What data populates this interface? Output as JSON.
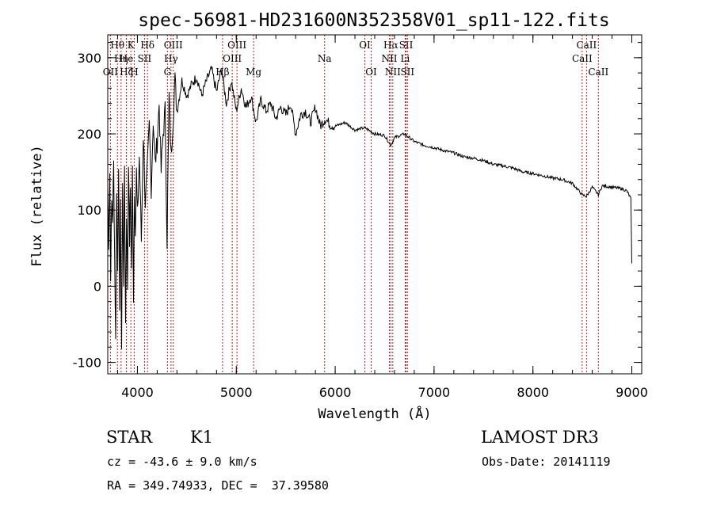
{
  "chart_data": {
    "type": "line",
    "title": "spec-56981-HD231600N352358V01_sp11-122.fits",
    "xlabel": "Wavelength (Å)",
    "ylabel": "Flux (relative)",
    "xlim": [
      3700,
      9100
    ],
    "ylim": [
      -115,
      330
    ],
    "xticks": [
      4000,
      5000,
      6000,
      7000,
      8000,
      9000
    ],
    "yticks": [
      -100,
      0,
      100,
      200,
      300
    ],
    "series": [
      {
        "name": "flux",
        "x": [
          3700,
          3710,
          3720,
          3730,
          3740,
          3750,
          3760,
          3770,
          3780,
          3790,
          3800,
          3810,
          3820,
          3830,
          3840,
          3850,
          3860,
          3870,
          3880,
          3890,
          3900,
          3910,
          3920,
          3930,
          3940,
          3950,
          3960,
          3970,
          3980,
          3990,
          4000,
          4020,
          4040,
          4060,
          4080,
          4100,
          4120,
          4140,
          4160,
          4180,
          4200,
          4220,
          4240,
          4260,
          4280,
          4300,
          4320,
          4340,
          4360,
          4380,
          4400,
          4450,
          4500,
          4550,
          4600,
          4650,
          4700,
          4750,
          4800,
          4850,
          4900,
          4950,
          5000,
          5050,
          5100,
          5150,
          5200,
          5250,
          5300,
          5350,
          5400,
          5450,
          5500,
          5550,
          5600,
          5650,
          5700,
          5750,
          5800,
          5850,
          5900,
          5950,
          6000,
          6100,
          6200,
          6300,
          6400,
          6500,
          6563,
          6600,
          6700,
          6800,
          6900,
          7000,
          7100,
          7200,
          7300,
          7400,
          7500,
          7600,
          7700,
          7800,
          7900,
          8000,
          8100,
          8200,
          8300,
          8400,
          8498,
          8542,
          8600,
          8662,
          8700,
          8800,
          8900,
          8950,
          8990,
          9000
        ],
        "values": [
          130,
          60,
          150,
          20,
          110,
          90,
          160,
          40,
          -75,
          120,
          30,
          140,
          -20,
          100,
          -80,
          130,
          10,
          160,
          -50,
          100,
          0,
          170,
          60,
          130,
          20,
          150,
          -10,
          120,
          80,
          150,
          90,
          170,
          60,
          200,
          110,
          150,
          210,
          130,
          220,
          160,
          190,
          240,
          150,
          200,
          230,
          60,
          250,
          170,
          220,
          270,
          230,
          270,
          250,
          265,
          275,
          250,
          270,
          285,
          255,
          285,
          240,
          270,
          230,
          260,
          235,
          250,
          215,
          245,
          230,
          240,
          220,
          235,
          225,
          240,
          200,
          225,
          230,
          215,
          235,
          210,
          220,
          212,
          210,
          215,
          205,
          208,
          200,
          198,
          185,
          195,
          200,
          190,
          185,
          182,
          178,
          175,
          170,
          168,
          165,
          160,
          158,
          155,
          150,
          148,
          145,
          142,
          140,
          135,
          120,
          118,
          130,
          120,
          132,
          130,
          128,
          125,
          115,
          30
        ]
      }
    ],
    "spectral_lines": [
      {
        "label": "Hθ",
        "x": 3798,
        "row": 1
      },
      {
        "label": "OII",
        "x": 3727,
        "row": 3
      },
      {
        "label": "Hη",
        "x": 3835,
        "row": 2
      },
      {
        "label": "He",
        "x": 3889,
        "row": 2
      },
      {
        "label": "Hζ",
        "x": 3889,
        "row": 3
      },
      {
        "label": "K",
        "x": 3934,
        "row": 1
      },
      {
        "label": "H",
        "x": 3968,
        "row": 3
      },
      {
        "label": "SII",
        "x": 4072,
        "row": 2
      },
      {
        "label": "Hδ",
        "x": 4102,
        "row": 1
      },
      {
        "label": "OIII",
        "x": 4363,
        "row": 1
      },
      {
        "label": "Hγ",
        "x": 4340,
        "row": 2
      },
      {
        "label": "G",
        "x": 4304,
        "row": 3
      },
      {
        "label": "Hβ",
        "x": 4861,
        "row": 3
      },
      {
        "label": "OIII",
        "x": 5007,
        "row": 1
      },
      {
        "label": "OIII",
        "x": 4959,
        "row": 2
      },
      {
        "label": "Mg",
        "x": 5175,
        "row": 3
      },
      {
        "label": "Na",
        "x": 5893,
        "row": 2
      },
      {
        "label": "OI",
        "x": 6300,
        "row": 1
      },
      {
        "label": "OI",
        "x": 6364,
        "row": 3
      },
      {
        "label": "Hα",
        "x": 6563,
        "row": 1
      },
      {
        "label": "NII",
        "x": 6548,
        "row": 2
      },
      {
        "label": "SII",
        "x": 6717,
        "row": 1
      },
      {
        "label": "NII",
        "x": 6583,
        "row": 3
      },
      {
        "label": "Li",
        "x": 6708,
        "row": 2
      },
      {
        "label": "SII",
        "x": 6731,
        "row": 3
      },
      {
        "label": "CaII",
        "x": 8542,
        "row": 1
      },
      {
        "label": "CaII",
        "x": 8498,
        "row": 2
      },
      {
        "label": "CaII",
        "x": 8662,
        "row": 3
      }
    ]
  },
  "info": {
    "object_class": "STAR",
    "subclass": "K1",
    "survey": "LAMOST DR3",
    "velocity": "cz = -43.6 ± 9.0 km/s",
    "obs_date": "Obs-Date: 20141119",
    "coords": "RA = 349.74933, DEC =  37.39580"
  },
  "colors": {
    "spectrum": "#000000",
    "line_marker": "#b22222",
    "axis": "#000000"
  }
}
